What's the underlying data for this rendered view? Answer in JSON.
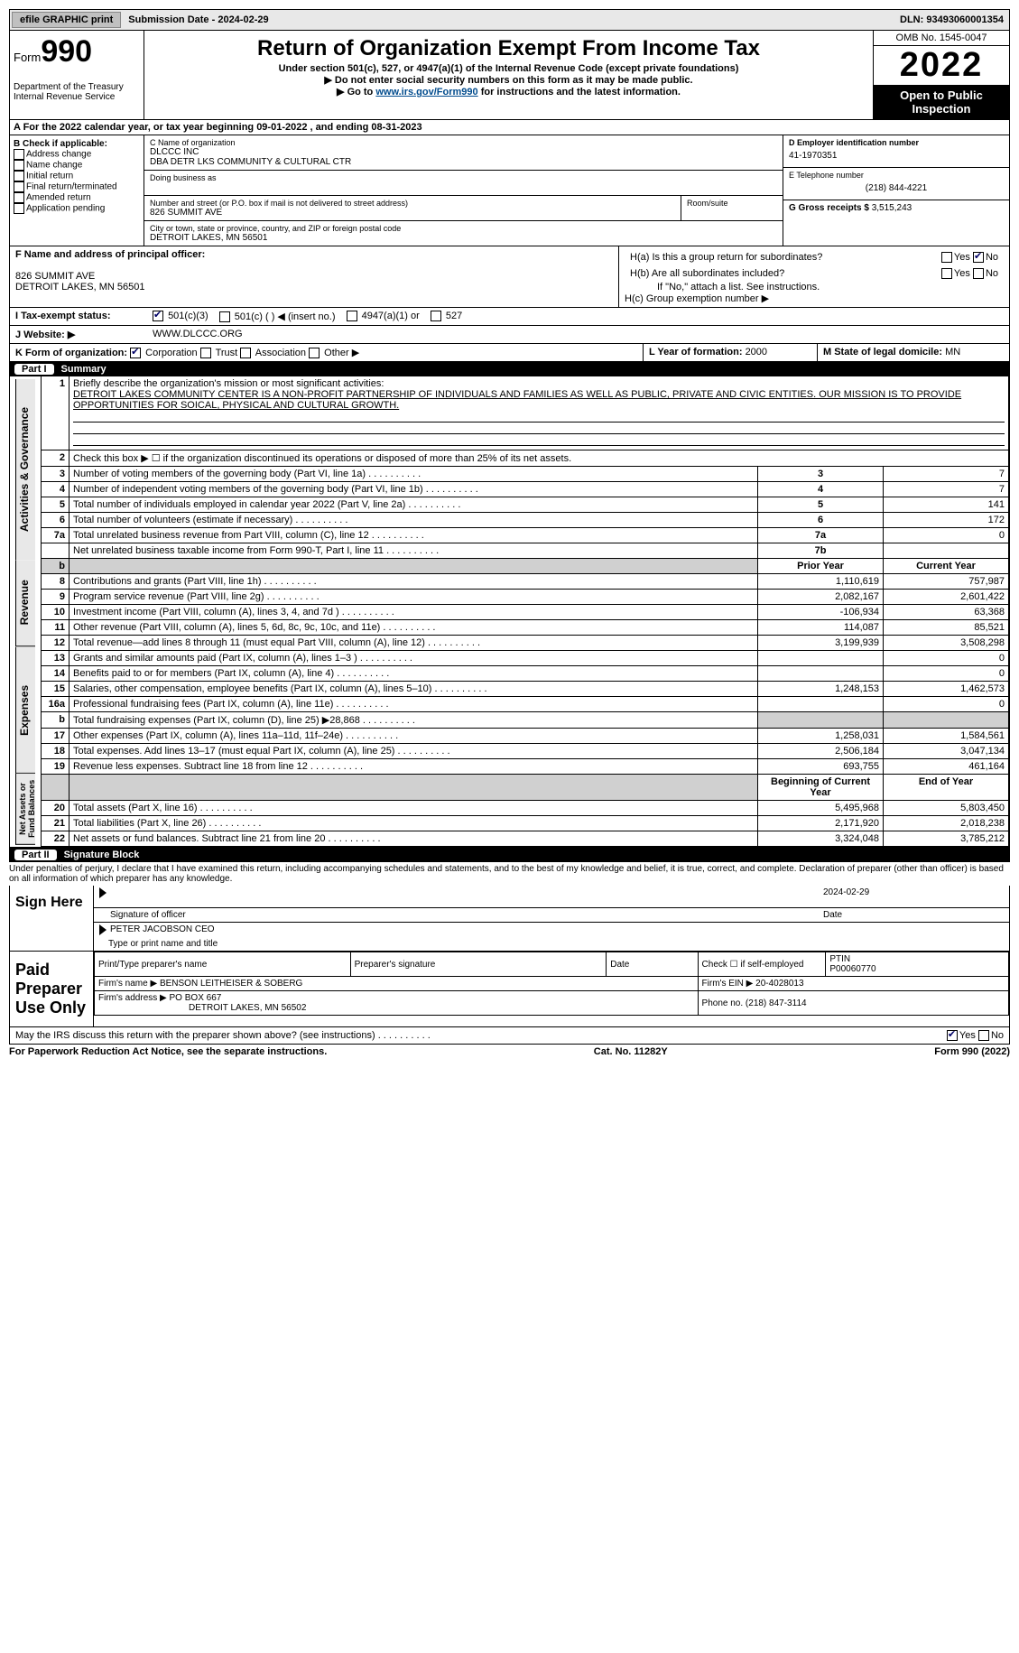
{
  "topbar": {
    "efile": "efile GRAPHIC print",
    "submission_label": "Submission Date - ",
    "submission_date": "2024-02-29",
    "dln_label": "DLN: ",
    "dln": "93493060001354"
  },
  "header": {
    "form_label": "Form",
    "form_number": "990",
    "dept": "Department of the Treasury\nInternal Revenue Service",
    "title": "Return of Organization Exempt From Income Tax",
    "subtitle": "Under section 501(c), 527, or 4947(a)(1) of the Internal Revenue Code (except private foundations)",
    "note1": "▶ Do not enter social security numbers on this form as it may be made public.",
    "note2_pre": "▶ Go to ",
    "note2_link": "www.irs.gov/Form990",
    "note2_post": " for instructions and the latest information.",
    "omb": "OMB No. 1545-0047",
    "year": "2022",
    "open": "Open to Public Inspection"
  },
  "line_a": "A For the 2022 calendar year, or tax year beginning 09-01-2022    , and ending 08-31-2023",
  "col_b": {
    "header": "B Check if applicable:",
    "items": [
      "Address change",
      "Name change",
      "Initial return",
      "Final return/terminated",
      "Amended return",
      "Application pending"
    ]
  },
  "col_c": {
    "name_label": "C Name of organization",
    "name1": "DLCCC INC",
    "name2": "DBA DETR LKS COMMUNITY & CULTURAL CTR",
    "dba_label": "Doing business as",
    "addr_label": "Number and street (or P.O. box if mail is not delivered to street address)",
    "room_label": "Room/suite",
    "addr": "826 SUMMIT AVE",
    "city_label": "City or town, state or province, country, and ZIP or foreign postal code",
    "city": "DETROIT LAKES, MN  56501"
  },
  "col_d": {
    "ein_label": "D Employer identification number",
    "ein": "41-1970351",
    "phone_label": "E Telephone number",
    "phone": "(218) 844-4221",
    "gross_label": "G Gross receipts $ ",
    "gross": "3,515,243"
  },
  "block_f": {
    "label": "F Name and address of principal officer:",
    "addr1": "826 SUMMIT AVE",
    "addr2": "DETROIT LAKES, MN  56501"
  },
  "block_h": {
    "ha": "H(a)  Is this a group return for subordinates?",
    "hb": "H(b)  Are all subordinates included?",
    "hb_note": "If \"No,\" attach a list. See instructions.",
    "hc": "H(c)  Group exemption number ▶",
    "yes": "Yes",
    "no": "No"
  },
  "line_i": {
    "label": "I    Tax-exempt status:",
    "opts": [
      "501(c)(3)",
      "501(c) (  ) ◀ (insert no.)",
      "4947(a)(1) or",
      "527"
    ]
  },
  "line_j": {
    "label": "J   Website: ▶",
    "value": "  WWW.DLCCC.ORG"
  },
  "line_k": {
    "label": "K Form of organization:",
    "opts": [
      "Corporation",
      "Trust",
      "Association",
      "Other ▶"
    ]
  },
  "line_l": {
    "label": "L Year of formation: ",
    "value": "2000"
  },
  "line_m": {
    "label": "M State of legal domicile: ",
    "value": "MN"
  },
  "part1": {
    "num": "Part I",
    "title": "Summary"
  },
  "summary": {
    "tabs": [
      "Activities & Governance",
      "Revenue",
      "Expenses",
      "Net Assets or Fund Balances"
    ],
    "line1_label": "Briefly describe the organization's mission or most significant activities:",
    "line1_text": "DETROIT LAKES COMMUNITY CENTER IS A NON-PROFIT PARTNERSHIP OF INDIVIDUALS AND FAMILIES AS WELL AS PUBLIC, PRIVATE AND CIVIC ENTITIES. OUR MISSION IS TO PROVIDE OPPORTUNITIES FOR SOICAL, PHYSICAL AND CULTURAL GROWTH.",
    "line2": "Check this box ▶ ☐ if the organization discontinued its operations or disposed of more than 25% of its net assets.",
    "gov_rows": [
      {
        "n": "3",
        "t": "Number of voting members of the governing body (Part VI, line 1a)",
        "c": "3",
        "v": "7"
      },
      {
        "n": "4",
        "t": "Number of independent voting members of the governing body (Part VI, line 1b)",
        "c": "4",
        "v": "7"
      },
      {
        "n": "5",
        "t": "Total number of individuals employed in calendar year 2022 (Part V, line 2a)",
        "c": "5",
        "v": "141"
      },
      {
        "n": "6",
        "t": "Total number of volunteers (estimate if necessary)",
        "c": "6",
        "v": "172"
      },
      {
        "n": "7a",
        "t": "Total unrelated business revenue from Part VIII, column (C), line 12",
        "c": "7a",
        "v": "0"
      },
      {
        "n": "",
        "t": "Net unrelated business taxable income from Form 990-T, Part I, line 11",
        "c": "7b",
        "v": ""
      }
    ],
    "col_hdr_prior": "Prior Year",
    "col_hdr_curr": "Current Year",
    "rev_rows": [
      {
        "n": "8",
        "t": "Contributions and grants (Part VIII, line 1h)",
        "p": "1,110,619",
        "c": "757,987"
      },
      {
        "n": "9",
        "t": "Program service revenue (Part VIII, line 2g)",
        "p": "2,082,167",
        "c": "2,601,422"
      },
      {
        "n": "10",
        "t": "Investment income (Part VIII, column (A), lines 3, 4, and 7d )",
        "p": "-106,934",
        "c": "63,368"
      },
      {
        "n": "11",
        "t": "Other revenue (Part VIII, column (A), lines 5, 6d, 8c, 9c, 10c, and 11e)",
        "p": "114,087",
        "c": "85,521"
      },
      {
        "n": "12",
        "t": "Total revenue—add lines 8 through 11 (must equal Part VIII, column (A), line 12)",
        "p": "3,199,939",
        "c": "3,508,298"
      }
    ],
    "exp_rows": [
      {
        "n": "13",
        "t": "Grants and similar amounts paid (Part IX, column (A), lines 1–3 )",
        "p": "",
        "c": "0"
      },
      {
        "n": "14",
        "t": "Benefits paid to or for members (Part IX, column (A), line 4)",
        "p": "",
        "c": "0"
      },
      {
        "n": "15",
        "t": "Salaries, other compensation, employee benefits (Part IX, column (A), lines 5–10)",
        "p": "1,248,153",
        "c": "1,462,573"
      },
      {
        "n": "16a",
        "t": "Professional fundraising fees (Part IX, column (A), line 11e)",
        "p": "",
        "c": "0"
      },
      {
        "n": "b",
        "t": "Total fundraising expenses (Part IX, column (D), line 25) ▶28,868",
        "p": "shade",
        "c": "shade"
      },
      {
        "n": "17",
        "t": "Other expenses (Part IX, column (A), lines 11a–11d, 11f–24e)",
        "p": "1,258,031",
        "c": "1,584,561"
      },
      {
        "n": "18",
        "t": "Total expenses. Add lines 13–17 (must equal Part IX, column (A), line 25)",
        "p": "2,506,184",
        "c": "3,047,134"
      },
      {
        "n": "19",
        "t": "Revenue less expenses. Subtract line 18 from line 12",
        "p": "693,755",
        "c": "461,164"
      }
    ],
    "net_hdr_beg": "Beginning of Current Year",
    "net_hdr_end": "End of Year",
    "net_rows": [
      {
        "n": "20",
        "t": "Total assets (Part X, line 16)",
        "p": "5,495,968",
        "c": "5,803,450"
      },
      {
        "n": "21",
        "t": "Total liabilities (Part X, line 26)",
        "p": "2,171,920",
        "c": "2,018,238"
      },
      {
        "n": "22",
        "t": "Net assets or fund balances. Subtract line 21 from line 20",
        "p": "3,324,048",
        "c": "3,785,212"
      }
    ]
  },
  "part2": {
    "num": "Part II",
    "title": "Signature Block"
  },
  "penalties": "Under penalties of perjury, I declare that I have examined this return, including accompanying schedules and statements, and to the best of my knowledge and belief, it is true, correct, and complete. Declaration of preparer (other than officer) is based on all information of which preparer has any knowledge.",
  "sign": {
    "label": "Sign Here",
    "sig_of_officer": "Signature of officer",
    "date_label": "Date",
    "date": "2024-02-29",
    "name": "PETER JACOBSON  CEO",
    "name_label": "Type or print name and title"
  },
  "prep": {
    "label": "Paid Preparer Use Only",
    "print_name": "Print/Type preparer's name",
    "sig": "Preparer's signature",
    "date": "Date",
    "check": "Check ☐ if self-employed",
    "ptin_label": "PTIN",
    "ptin": "P00060770",
    "firm_name_label": "Firm's name     ▶ ",
    "firm_name": "BENSON LEITHEISER & SOBERG",
    "firm_ein_label": "Firm's EIN ▶ ",
    "firm_ein": "20-4028013",
    "firm_addr_label": "Firm's address ▶ ",
    "firm_addr1": "PO BOX 667",
    "firm_addr2": "DETROIT LAKES, MN  56502",
    "phone_label": "Phone no. ",
    "phone": "(218) 847-3114"
  },
  "may_irs": "May the IRS discuss this return with the preparer shown above? (see instructions)",
  "footer": {
    "left": "For Paperwork Reduction Act Notice, see the separate instructions.",
    "mid": "Cat. No. 11282Y",
    "right": "Form 990 (2022)"
  }
}
